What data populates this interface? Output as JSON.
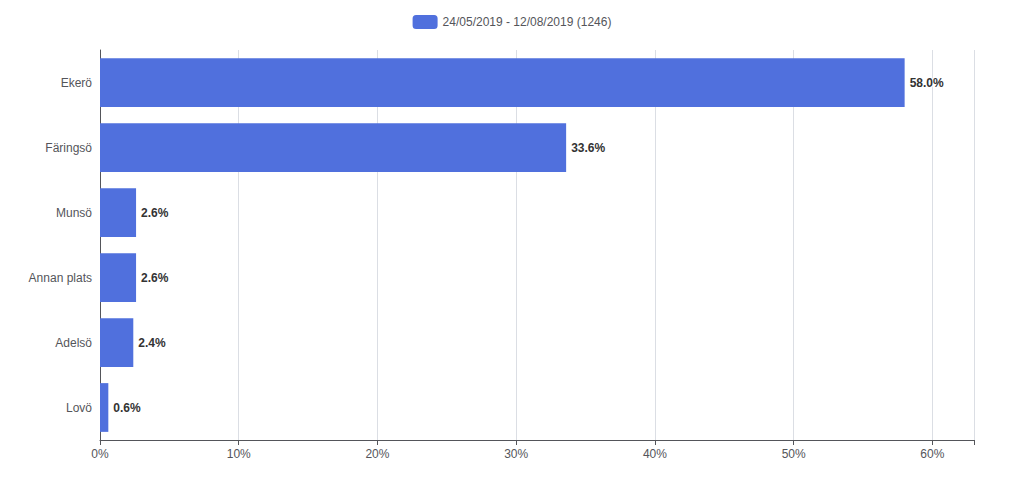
{
  "chart_data": {
    "type": "bar",
    "orientation": "horizontal",
    "categories": [
      "Ekerö",
      "Färingsö",
      "Munsö",
      "Annan plats",
      "Adelsö",
      "Lovö"
    ],
    "series": [
      {
        "name": "24/05/2019 - 12/08/2019 (1246)",
        "values": [
          58.0,
          33.6,
          2.6,
          2.6,
          2.4,
          0.6
        ],
        "value_labels": [
          "58.0%",
          "33.6%",
          "2.6%",
          "2.6%",
          "2.4%",
          "0.6%"
        ]
      }
    ],
    "xlim": [
      0,
      63
    ],
    "xticks": [
      {
        "value": 0,
        "label": "0%"
      },
      {
        "value": 10,
        "label": "10%"
      },
      {
        "value": 20,
        "label": "20%"
      },
      {
        "value": 30,
        "label": "30%"
      },
      {
        "value": 40,
        "label": "40%"
      },
      {
        "value": 50,
        "label": "50%"
      },
      {
        "value": 60,
        "label": "60%"
      }
    ],
    "grid": true,
    "legend": "top",
    "data_labels": true
  }
}
